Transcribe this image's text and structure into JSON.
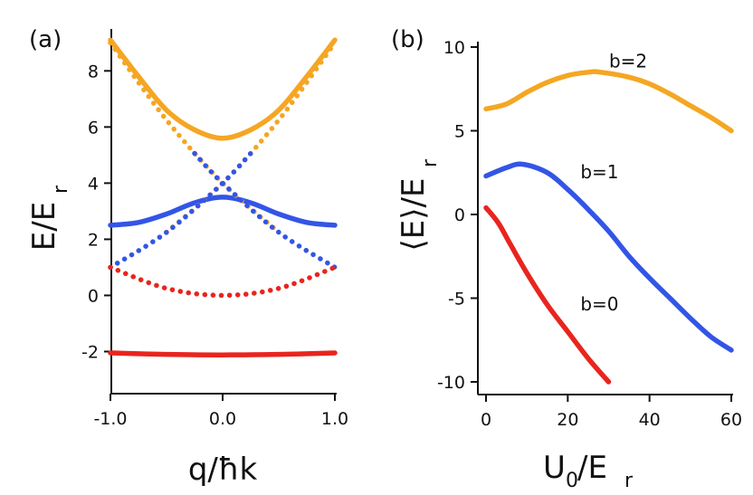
{
  "chart_data": [
    {
      "type": "line",
      "panel_label": "(a)",
      "xlabel": "q/ħk",
      "ylabel": "E/E",
      "ylabel_sub": "r",
      "xlim": [
        -1.0,
        1.0
      ],
      "ylim": [
        -3.5,
        9.3
      ],
      "xticks": [
        -1.0,
        0.0,
        1.0
      ],
      "xtick_labels": [
        "-1.0",
        "0.0",
        "1.0"
      ],
      "yticks": [
        -2,
        0,
        2,
        4,
        6,
        8
      ],
      "ytick_labels": [
        "-2",
        "0",
        "2",
        "4",
        "6",
        "8"
      ],
      "series": [
        {
          "name": "band-2",
          "style": "solid",
          "color": "#f5a623",
          "x": [
            -1.0,
            -0.75,
            -0.5,
            -0.25,
            0.0,
            0.25,
            0.5,
            0.75,
            1.0
          ],
          "y": [
            9.1,
            7.8,
            6.6,
            5.9,
            5.6,
            5.9,
            6.6,
            7.8,
            9.1
          ]
        },
        {
          "name": "band-1",
          "style": "solid",
          "color": "#3355e6",
          "x": [
            -1.0,
            -0.75,
            -0.5,
            -0.25,
            0.0,
            0.25,
            0.5,
            0.75,
            1.0
          ],
          "y": [
            2.5,
            2.6,
            2.9,
            3.3,
            3.5,
            3.3,
            2.9,
            2.6,
            2.5
          ]
        },
        {
          "name": "band-0",
          "style": "solid",
          "color": "#e8251e",
          "x": [
            -1.0,
            -0.5,
            0.0,
            0.5,
            1.0
          ],
          "y": [
            -2.05,
            -2.1,
            -2.12,
            -2.1,
            -2.05
          ]
        },
        {
          "name": "free-left-high",
          "style": "dotted",
          "color": "#f5a623",
          "x": [
            -1.0,
            -0.5,
            0.0,
            0.5
          ],
          "y": [
            9.0,
            6.25,
            4.0,
            2.25
          ]
        },
        {
          "name": "free-right-high",
          "style": "dotted",
          "color": "#f5a623",
          "x": [
            -0.5,
            0.0,
            0.5,
            1.0
          ],
          "y": [
            2.25,
            4.0,
            6.25,
            9.0
          ]
        },
        {
          "name": "free-left-mid",
          "style": "dotted",
          "color": "#3355e6",
          "x": [
            -1.0,
            -0.5,
            0.0,
            0.25
          ],
          "y": [
            1.0,
            2.25,
            4.0,
            5.06
          ]
        },
        {
          "name": "free-right-mid",
          "style": "dotted",
          "color": "#3355e6",
          "x": [
            -0.25,
            0.0,
            0.5,
            1.0
          ],
          "y": [
            5.06,
            4.0,
            2.25,
            1.0
          ]
        },
        {
          "name": "free-low",
          "style": "dotted",
          "color": "#e8251e",
          "x": [
            -1.0,
            -0.5,
            0.0,
            0.5,
            1.0
          ],
          "y": [
            1.0,
            0.25,
            0.0,
            0.25,
            1.0
          ]
        }
      ]
    },
    {
      "type": "line",
      "panel_label": "(b)",
      "xlabel": "U",
      "xlabel_sub": "0",
      "xlabel_suffix": "/E",
      "xlabel_sub2": "r",
      "ylabel": "⟨E⟩/E",
      "ylabel_sub": "r",
      "xlim": [
        0,
        60
      ],
      "ylim": [
        -10,
        10
      ],
      "xticks": [
        0,
        20,
        40,
        60
      ],
      "xtick_labels": [
        "0",
        "20",
        "40",
        "60"
      ],
      "yticks": [
        -10,
        -5,
        0,
        5,
        10
      ],
      "ytick_labels": [
        "-10",
        "-5",
        "0",
        "5",
        "10"
      ],
      "series": [
        {
          "name": "b=2",
          "color": "#f5a623",
          "x": [
            0,
            5,
            10,
            15,
            20,
            25,
            28,
            35,
            40,
            45,
            50,
            55,
            60
          ],
          "y": [
            6.3,
            6.6,
            7.3,
            7.9,
            8.3,
            8.5,
            8.5,
            8.2,
            7.8,
            7.2,
            6.5,
            5.8,
            5.0
          ]
        },
        {
          "name": "b=1",
          "color": "#3355e6",
          "x": [
            0,
            5,
            9,
            15,
            20,
            25,
            30,
            35,
            40,
            45,
            50,
            55,
            60
          ],
          "y": [
            2.3,
            2.8,
            3.0,
            2.5,
            1.5,
            0.3,
            -1.0,
            -2.5,
            -3.8,
            -5.0,
            -6.2,
            -7.3,
            -8.1
          ]
        },
        {
          "name": "b=0",
          "color": "#e8251e",
          "x": [
            0,
            3,
            6,
            10,
            15,
            20,
            25,
            30
          ],
          "y": [
            0.4,
            -0.5,
            -1.8,
            -3.5,
            -5.4,
            -7.0,
            -8.6,
            -10.0
          ]
        }
      ],
      "curve_labels": [
        {
          "text": "b=2",
          "x": 27,
          "y": 9.1
        },
        {
          "text": "b=1",
          "x": 20,
          "y": 2.5
        },
        {
          "text": "b=0",
          "x": 20,
          "y": -5.4
        }
      ]
    }
  ]
}
